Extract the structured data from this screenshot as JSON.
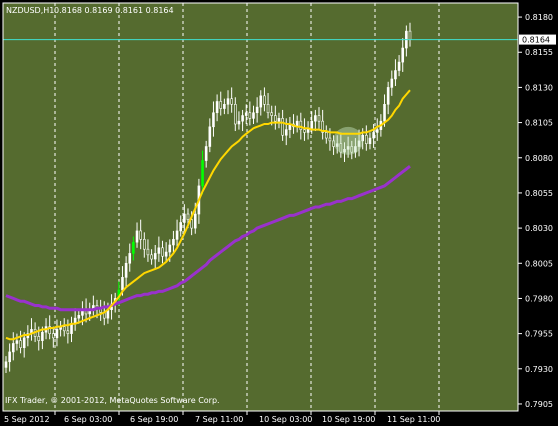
{
  "header": {
    "symbol": "NZDUSD,H1",
    "ohlc": "0.8168 0.8169 0.8161 0.8164"
  },
  "copyright": "IFX Trader, © 2001-2012, MetaQuotes Software Corp.",
  "current_price_label": "0.8164",
  "colors": {
    "plot_bg": "#556B2F",
    "frame": "#FFFFFF",
    "text": "#FFFFFF",
    "grid": "#FFFFFF",
    "candle": "#FFFFFF",
    "candle_up_highlight": "#00FF00",
    "ma_fast": "#FFD700",
    "ma_slow": "#9932CC",
    "price_line": "#40E0D0",
    "highlight_circle": "#C8E6C0"
  },
  "chart_data": {
    "type": "candlestick",
    "title": "NZDUSD,H1",
    "ylim": [
      0.79,
      0.819
    ],
    "y_ticks": [
      "0.8180",
      "0.8155",
      "0.8130",
      "0.8105",
      "0.8080",
      "0.8055",
      "0.8030",
      "0.8005",
      "0.7980",
      "0.7955",
      "0.7930",
      "0.7905"
    ],
    "x_ticks": [
      "5 Sep 2012",
      "6 Sep 03:00",
      "6 Sep 19:00",
      "7 Sep 11:00",
      "10 Sep 03:00",
      "10 Sep 19:00",
      "11 Sep 11:00"
    ],
    "current_price": 0.8164,
    "close_series": [
      0.7935,
      0.7942,
      0.7948,
      0.795,
      0.7945,
      0.7952,
      0.7955,
      0.7958,
      0.7953,
      0.795,
      0.7956,
      0.796,
      0.7955,
      0.7952,
      0.7958,
      0.796,
      0.7957,
      0.7955,
      0.7962,
      0.7966,
      0.7968,
      0.7972,
      0.7969,
      0.7972,
      0.7975,
      0.7973,
      0.797,
      0.7966,
      0.7972,
      0.7976,
      0.798,
      0.7986,
      0.7995,
      0.8005,
      0.8012,
      0.802,
      0.8028,
      0.8022,
      0.8015,
      0.8011,
      0.8008,
      0.8012,
      0.8016,
      0.801,
      0.8013,
      0.8018,
      0.8022,
      0.8028,
      0.8034,
      0.804,
      0.8036,
      0.803,
      0.804,
      0.806,
      0.8078,
      0.8088,
      0.8102,
      0.8112,
      0.812,
      0.8115,
      0.8118,
      0.8122,
      0.8118,
      0.8104,
      0.8106,
      0.811,
      0.8112,
      0.8108,
      0.8112,
      0.8116,
      0.8124,
      0.8118,
      0.8112,
      0.811,
      0.8106,
      0.8108,
      0.8096,
      0.81,
      0.8104,
      0.8102,
      0.8106,
      0.81,
      0.8098,
      0.8101,
      0.8106,
      0.811,
      0.8106,
      0.8098,
      0.8094,
      0.8092,
      0.8088,
      0.809,
      0.8084,
      0.8086,
      0.8088,
      0.8084,
      0.8088,
      0.8092,
      0.8096,
      0.809,
      0.8094,
      0.8098,
      0.81,
      0.8106,
      0.8118,
      0.813,
      0.8136,
      0.8142,
      0.8148,
      0.8158,
      0.817,
      0.8164
    ],
    "ma_fast": [
      0.7952,
      0.7951,
      0.7951,
      0.7952,
      0.7953,
      0.7954,
      0.7954,
      0.7955,
      0.7956,
      0.7957,
      0.7958,
      0.7958,
      0.7959,
      0.7959,
      0.796,
      0.796,
      0.7961,
      0.7961,
      0.7962,
      0.7962,
      0.7963,
      0.7964,
      0.7965,
      0.7966,
      0.7967,
      0.7968,
      0.7969,
      0.797,
      0.7972,
      0.7975,
      0.7978,
      0.7981,
      0.7985,
      0.7988,
      0.799,
      0.7992,
      0.7994,
      0.7996,
      0.7998,
      0.7999,
      0.8,
      0.8001,
      0.8002,
      0.8004,
      0.8006,
      0.8009,
      0.8012,
      0.8016,
      0.8021,
      0.8026,
      0.8032,
      0.8038,
      0.8044,
      0.805,
      0.8056,
      0.8061,
      0.8066,
      0.8071,
      0.8075,
      0.8079,
      0.8082,
      0.8085,
      0.8088,
      0.809,
      0.8092,
      0.8095,
      0.8097,
      0.8099,
      0.8101,
      0.8102,
      0.8103,
      0.8104,
      0.8104,
      0.8105,
      0.8105,
      0.8105,
      0.8105,
      0.8104,
      0.8104,
      0.8103,
      0.8102,
      0.8102,
      0.8101,
      0.8101,
      0.81,
      0.81,
      0.81,
      0.8099,
      0.8099,
      0.8098,
      0.8098,
      0.8098,
      0.8097,
      0.8097,
      0.8097,
      0.8097,
      0.8097,
      0.8097,
      0.8098,
      0.8098,
      0.8099,
      0.81,
      0.8102,
      0.8103,
      0.8105,
      0.8107,
      0.811,
      0.8114,
      0.8117,
      0.8122,
      0.8125,
      0.8128
    ],
    "ma_slow": [
      0.7982,
      0.7981,
      0.798,
      0.7979,
      0.7978,
      0.7978,
      0.7977,
      0.7976,
      0.7975,
      0.7975,
      0.7974,
      0.7974,
      0.7973,
      0.7973,
      0.7973,
      0.7972,
      0.7972,
      0.7972,
      0.7972,
      0.7972,
      0.7972,
      0.7972,
      0.7972,
      0.7972,
      0.7972,
      0.7973,
      0.7973,
      0.7974,
      0.7974,
      0.7975,
      0.7976,
      0.7977,
      0.7978,
      0.7979,
      0.798,
      0.7981,
      0.7982,
      0.7982,
      0.7983,
      0.7983,
      0.7984,
      0.7984,
      0.7985,
      0.7985,
      0.7986,
      0.7987,
      0.7988,
      0.7989,
      0.7991,
      0.7992,
      0.7994,
      0.7996,
      0.7998,
      0.8,
      0.8002,
      0.8004,
      0.8007,
      0.8009,
      0.8011,
      0.8013,
      0.8015,
      0.8017,
      0.8019,
      0.8021,
      0.8022,
      0.8024,
      0.8025,
      0.8027,
      0.8028,
      0.803,
      0.8031,
      0.8032,
      0.8033,
      0.8034,
      0.8035,
      0.8036,
      0.8037,
      0.8038,
      0.8039,
      0.8039,
      0.804,
      0.8041,
      0.8042,
      0.8043,
      0.8044,
      0.8045,
      0.8045,
      0.8046,
      0.8047,
      0.8047,
      0.8048,
      0.8049,
      0.8049,
      0.805,
      0.8051,
      0.8051,
      0.8052,
      0.8053,
      0.8054,
      0.8055,
      0.8056,
      0.8057,
      0.8058,
      0.8059,
      0.806,
      0.8062,
      0.8064,
      0.8066,
      0.8068,
      0.807,
      0.8072,
      0.8074
    ]
  }
}
